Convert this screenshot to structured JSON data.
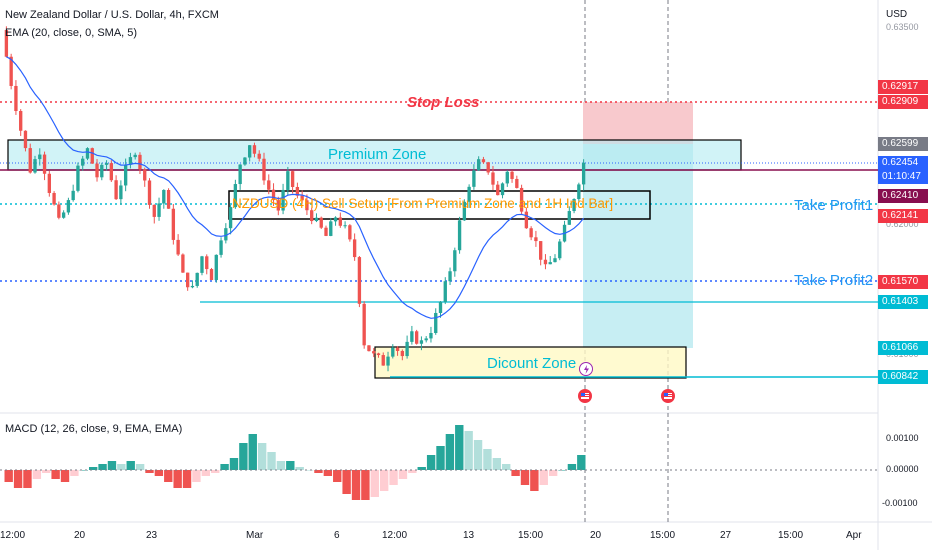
{
  "header": {
    "title": "New Zealand Dollar / U.S. Dollar, 4h, FXCM",
    "ema_legend": "EMA (20, close, 0, SMA, 5)",
    "macd_legend": "MACD (12, 26, close, 9, EMA, EMA)",
    "currency": "USD"
  },
  "annotations": {
    "stop_loss": "Stop Loss",
    "premium_zone": "Premium Zone",
    "discount_zone": "Dicount Zone",
    "setup_text": "NZDUSD (4H) Sell Setup [From Premium Zone and 1H Ind Bar]",
    "take_profit1": "Take Profit1",
    "take_profit2": "Take Profit2"
  },
  "price_badges": [
    {
      "value": "0.62917",
      "color": "#f23645"
    },
    {
      "value": "0.62909",
      "color": "#f23645"
    },
    {
      "value": "0.62599",
      "color": "#787b86"
    },
    {
      "value": "0.62454",
      "color": "#2962ff"
    },
    {
      "value": "01:10:47",
      "color": "#2962ff"
    },
    {
      "value": "0.62410",
      "color": "#880e4f"
    },
    {
      "value": "0.62141",
      "color": "#f23645"
    },
    {
      "value": "0.61570",
      "color": "#f23645"
    },
    {
      "value": "0.61403",
      "color": "#00bcd4"
    },
    {
      "value": "0.61066",
      "color": "#00bcd4"
    },
    {
      "value": "0.60842",
      "color": "#00bcd4"
    }
  ],
  "price_ticks": [
    "0.63500",
    "0.62000",
    "0.61000"
  ],
  "macd_ticks": [
    "0.00100",
    "0.00000",
    "-0.00100"
  ],
  "date_ticks": [
    "12:00",
    "20",
    "23",
    "Mar",
    "6",
    "12:00",
    "13",
    "15:00",
    "20",
    "15:00",
    "27",
    "15:00",
    "Apr"
  ],
  "icons": {
    "lightning": "lightning-icon",
    "flag": "us-flag-icon"
  },
  "colors": {
    "up": "#26a69a",
    "down": "#ef5350",
    "ema": "#2962ff",
    "premium_fill": "#b2ebf2",
    "discount_fill": "#fff9c4",
    "stop_zone": "#f8c9cd",
    "target_zone": "#c7eef3"
  },
  "chart_data": {
    "type": "candlestick",
    "symbol": "NZDUSD",
    "timeframe": "4h",
    "levels": {
      "stop_loss": 0.62909,
      "premium_zone": [
        0.6241,
        0.62599
      ],
      "take_profit1": 0.62141,
      "take_profit2": 0.6157,
      "support": 0.61403,
      "discount_zone": [
        0.60842,
        0.61066
      ],
      "last_price": 0.62454
    },
    "close_path": [
      0.6345,
      0.6305,
      0.627,
      0.624,
      0.6255,
      0.6225,
      0.62,
      0.6215,
      0.624,
      0.6255,
      0.6235,
      0.6245,
      0.622,
      0.624,
      0.6255,
      0.623,
      0.6205,
      0.6225,
      0.619,
      0.616,
      0.615,
      0.6175,
      0.616,
      0.619,
      0.621,
      0.6245,
      0.626,
      0.6245,
      0.6225,
      0.621,
      0.6235,
      0.622,
      0.621,
      0.62,
      0.619,
      0.6205,
      0.6195,
      0.6175,
      0.611,
      0.61,
      0.6095,
      0.611,
      0.61,
      0.6115,
      0.611,
      0.612,
      0.614,
      0.6165,
      0.62,
      0.623,
      0.6245,
      0.624,
      0.622,
      0.624,
      0.6225,
      0.62,
      0.6185,
      0.6165,
      0.6175,
      0.6195,
      0.622,
      0.6245
    ],
    "macd_histogram": [
      -0.0004,
      -0.0006,
      -0.0006,
      -0.0003,
      -0.0001,
      -0.0003,
      -0.0004,
      -0.0002,
      0.0,
      0.0001,
      0.0002,
      0.0003,
      0.0002,
      0.0003,
      0.0002,
      -0.0001,
      -0.0002,
      -0.0004,
      -0.0006,
      -0.0006,
      -0.0004,
      -0.0002,
      -0.0001,
      0.0002,
      0.0004,
      0.0009,
      0.0012,
      0.0009,
      0.0006,
      0.0003,
      0.0003,
      0.0001,
      0.0,
      -0.0001,
      -0.0002,
      -0.0004,
      -0.0008,
      -0.001,
      -0.001,
      -0.0009,
      -0.0007,
      -0.0005,
      -0.0003,
      -0.0001,
      0.0001,
      0.0005,
      0.0008,
      0.0012,
      0.0015,
      0.0013,
      0.001,
      0.0007,
      0.0004,
      0.0002,
      -0.0002,
      -0.0005,
      -0.0007,
      -0.0005,
      -0.0002,
      0.0,
      0.0002,
      0.0005
    ]
  }
}
